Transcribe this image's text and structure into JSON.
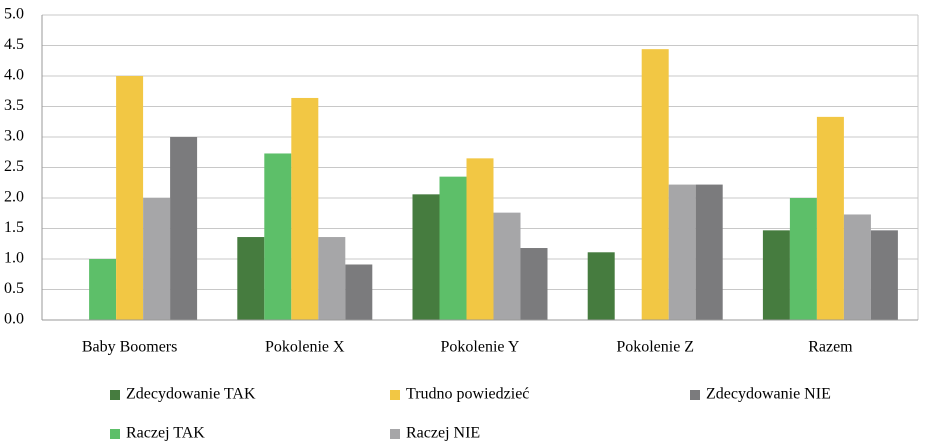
{
  "chart_data": {
    "type": "bar",
    "categories": [
      "Baby Boomers",
      "Pokolenie X",
      "Pokolenie Y",
      "Pokolenie Z",
      "Razem"
    ],
    "series": [
      {
        "name": "Zdecydowanie TAK",
        "color": "#467c3f",
        "values": [
          0,
          1.36,
          2.06,
          1.11,
          1.47
        ]
      },
      {
        "name": "Raczej TAK",
        "color": "#5dbf69",
        "values": [
          1.0,
          2.73,
          2.35,
          0,
          2.0
        ]
      },
      {
        "name": "Trudno powiedzieć",
        "color": "#f2c744",
        "values": [
          4.0,
          3.64,
          2.65,
          4.44,
          3.33
        ]
      },
      {
        "name": "Raczej NIE",
        "color": "#a6a6a8",
        "values": [
          2.0,
          1.36,
          1.76,
          2.22,
          1.73
        ]
      },
      {
        "name": "Zdecydowanie NIE",
        "color": "#7b7b7d",
        "values": [
          3.0,
          0.91,
          1.18,
          2.22,
          1.47
        ]
      }
    ],
    "ylim": [
      0,
      5
    ],
    "yticks": [
      {
        "value": 0,
        "label": "0.0"
      },
      {
        "value": 0.5,
        "label": "0.5"
      },
      {
        "value": 1,
        "label": "1.0"
      },
      {
        "value": 1.5,
        "label": "1.5"
      },
      {
        "value": 2,
        "label": "2.0"
      },
      {
        "value": 2.5,
        "label": "2.5"
      },
      {
        "value": 3,
        "label": "3.0"
      },
      {
        "value": 3.5,
        "label": "3.5"
      },
      {
        "value": 4,
        "label": "4.0"
      },
      {
        "value": 4.5,
        "label": "4.5"
      },
      {
        "value": 5,
        "label": "5.0"
      }
    ],
    "grid": true,
    "legend": "bottom"
  }
}
